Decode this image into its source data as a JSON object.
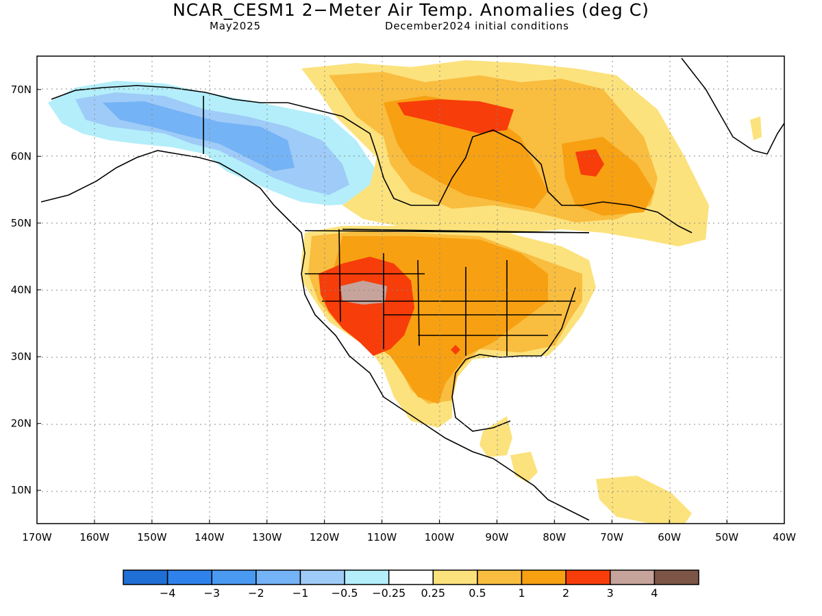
{
  "title": "NCAR_CESM1 2−Meter Air Temp. Anomalies (deg C)",
  "subtitle_left": "May2025",
  "subtitle_right": "December2024 initial conditions",
  "map": {
    "lon_range": [
      -170,
      -40
    ],
    "lat_range": [
      5,
      75
    ],
    "lon_ticks": [
      "170W",
      "160W",
      "150W",
      "140W",
      "130W",
      "120W",
      "110W",
      "100W",
      "90W",
      "80W",
      "70W",
      "60W",
      "50W",
      "40W"
    ],
    "lat_ticks": [
      "10N",
      "20N",
      "30N",
      "40N",
      "50N",
      "60N",
      "70N"
    ],
    "gridlines": "dotted"
  },
  "colorbar": {
    "labels": [
      "−4",
      "−3",
      "−2",
      "−1",
      "−0.5",
      "−0.25",
      "0.25",
      "0.5",
      "1",
      "2",
      "3",
      "4"
    ],
    "colors": [
      "#1f6fd6",
      "#2f82ec",
      "#4a9af2",
      "#74b3f5",
      "#9fcbf8",
      "#b3eefa",
      "#ffffff",
      "#fce27d",
      "#f9bd3f",
      "#f7a012",
      "#f73d0a",
      "#c6a39b",
      "#7d5547"
    ]
  }
}
